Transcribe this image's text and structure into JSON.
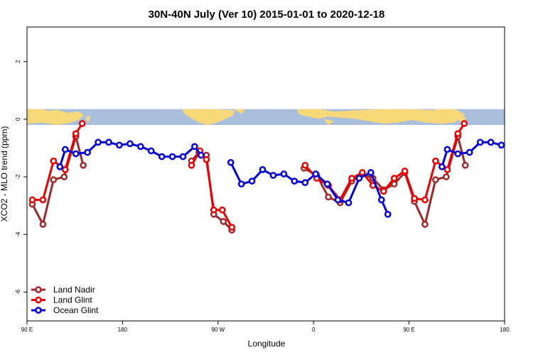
{
  "chart_data": {
    "type": "line",
    "title": "30N-40N July (Ver 10)   2015-01-01 to 2020-12-18",
    "xlabel": "Longitude",
    "ylabel": "XCO2 - MLO trend (ppm)",
    "xlim": [
      90,
      540
    ],
    "ylim": [
      -7,
      3.2
    ],
    "x_ticks": [
      {
        "value": 90,
        "label": "90 E"
      },
      {
        "value": 180,
        "label": "180"
      },
      {
        "value": 270,
        "label": "90 W"
      },
      {
        "value": 360,
        "label": "0"
      },
      {
        "value": 450,
        "label": "90 E"
      },
      {
        "value": 540,
        "label": "180"
      }
    ],
    "y_ticks": [
      {
        "value": 2,
        "label": "2"
      },
      {
        "value": 0,
        "label": "0"
      },
      {
        "value": -2,
        "label": "-2"
      },
      {
        "value": -4,
        "label": "-4"
      },
      {
        "value": -6,
        "label": "-6"
      }
    ],
    "map_band": {
      "y_top": 0.35,
      "y_bottom": -0.2,
      "ocean_color": "#a9bfdc",
      "land_color": "#f8d97a"
    },
    "legend_position": "bottom-left",
    "series": [
      {
        "name": "Land Nadir",
        "color": "#a0282a",
        "segments": [
          [
            [
              95,
              -2.95
            ],
            [
              105,
              -3.65
            ],
            [
              115,
              -2.1
            ],
            [
              125,
              -2.0
            ],
            [
              136,
              -0.6
            ],
            [
              143,
              -1.6
            ]
          ],
          [
            [
              245,
              -1.45
            ],
            [
              252,
              -1.15
            ],
            [
              259,
              -1.25
            ],
            [
              266,
              -3.3
            ],
            [
              275,
              -3.55
            ],
            [
              283,
              -3.85
            ]
          ],
          [
            [
              351,
              -1.7
            ],
            [
              363,
              -1.95
            ],
            [
              374,
              -2.7
            ],
            [
              385,
              -2.9
            ],
            [
              396,
              -2.15
            ],
            [
              406,
              -1.9
            ],
            [
              416,
              -2.05
            ],
            [
              426,
              -2.45
            ],
            [
              436,
              -2.25
            ],
            [
              446,
              -1.85
            ],
            [
              455,
              -2.85
            ],
            [
              465,
              -3.65
            ],
            [
              475,
              -2.1
            ],
            [
              485,
              -2.0
            ],
            [
              496,
              -0.6
            ],
            [
              503,
              -1.6
            ]
          ]
        ]
      },
      {
        "name": "Land Glint",
        "color": "#ee0000",
        "segments": [
          [
            [
              95,
              -2.8
            ],
            [
              105,
              -2.8
            ],
            [
              115,
              -1.45
            ],
            [
              126,
              -1.75
            ],
            [
              136,
              -0.5
            ],
            [
              142,
              -0.15
            ]
          ],
          [
            [
              245,
              -1.6
            ],
            [
              253,
              -1.1
            ],
            [
              259,
              -1.4
            ],
            [
              266,
              -3.15
            ],
            [
              274,
              -3.15
            ],
            [
              283,
              -3.75
            ]
          ],
          [
            [
              352,
              -1.6
            ],
            [
              363,
              -2.05
            ],
            [
              374,
              -2.3
            ],
            [
              385,
              -2.8
            ],
            [
              396,
              -2.05
            ],
            [
              406,
              -1.85
            ],
            [
              416,
              -2.3
            ],
            [
              426,
              -2.5
            ],
            [
              436,
              -2.05
            ],
            [
              446,
              -1.8
            ],
            [
              455,
              -2.75
            ],
            [
              465,
              -2.8
            ],
            [
              475,
              -1.45
            ],
            [
              486,
              -1.75
            ],
            [
              496,
              -0.5
            ],
            [
              502,
              -0.15
            ]
          ]
        ]
      },
      {
        "name": "Ocean Glint",
        "color": "#0000dd",
        "segments": [
          [
            [
              121,
              -1.65
            ],
            [
              126,
              -1.05
            ],
            [
              136,
              -1.2
            ],
            [
              147,
              -1.15
            ],
            [
              157,
              -0.8
            ],
            [
              167,
              -0.8
            ],
            [
              177,
              -0.9
            ],
            [
              187,
              -0.85
            ],
            [
              197,
              -0.95
            ],
            [
              207,
              -1.1
            ],
            [
              217,
              -1.3
            ],
            [
              227,
              -1.3
            ],
            [
              237,
              -1.3
            ],
            [
              248,
              -0.95
            ],
            [
              254,
              -1.25
            ]
          ],
          [
            [
              282,
              -1.5
            ],
            [
              292,
              -2.25
            ],
            [
              302,
              -2.15
            ],
            [
              312,
              -1.75
            ],
            [
              322,
              -1.95
            ],
            [
              332,
              -1.9
            ],
            [
              342,
              -2.15
            ],
            [
              352,
              -2.2
            ],
            [
              362,
              -1.9
            ],
            [
              373,
              -2.25
            ],
            [
              383,
              -2.8
            ],
            [
              393,
              -2.9
            ],
            [
              403,
              -2.05
            ],
            [
              414,
              -1.85
            ],
            [
              424,
              -2.8
            ],
            [
              430,
              -3.3
            ]
          ],
          [
            [
              481,
              -1.65
            ],
            [
              486,
              -1.05
            ],
            [
              496,
              -1.2
            ],
            [
              507,
              -1.15
            ],
            [
              517,
              -0.8
            ],
            [
              527,
              -0.8
            ],
            [
              537,
              -0.9
            ]
          ]
        ]
      }
    ]
  }
}
